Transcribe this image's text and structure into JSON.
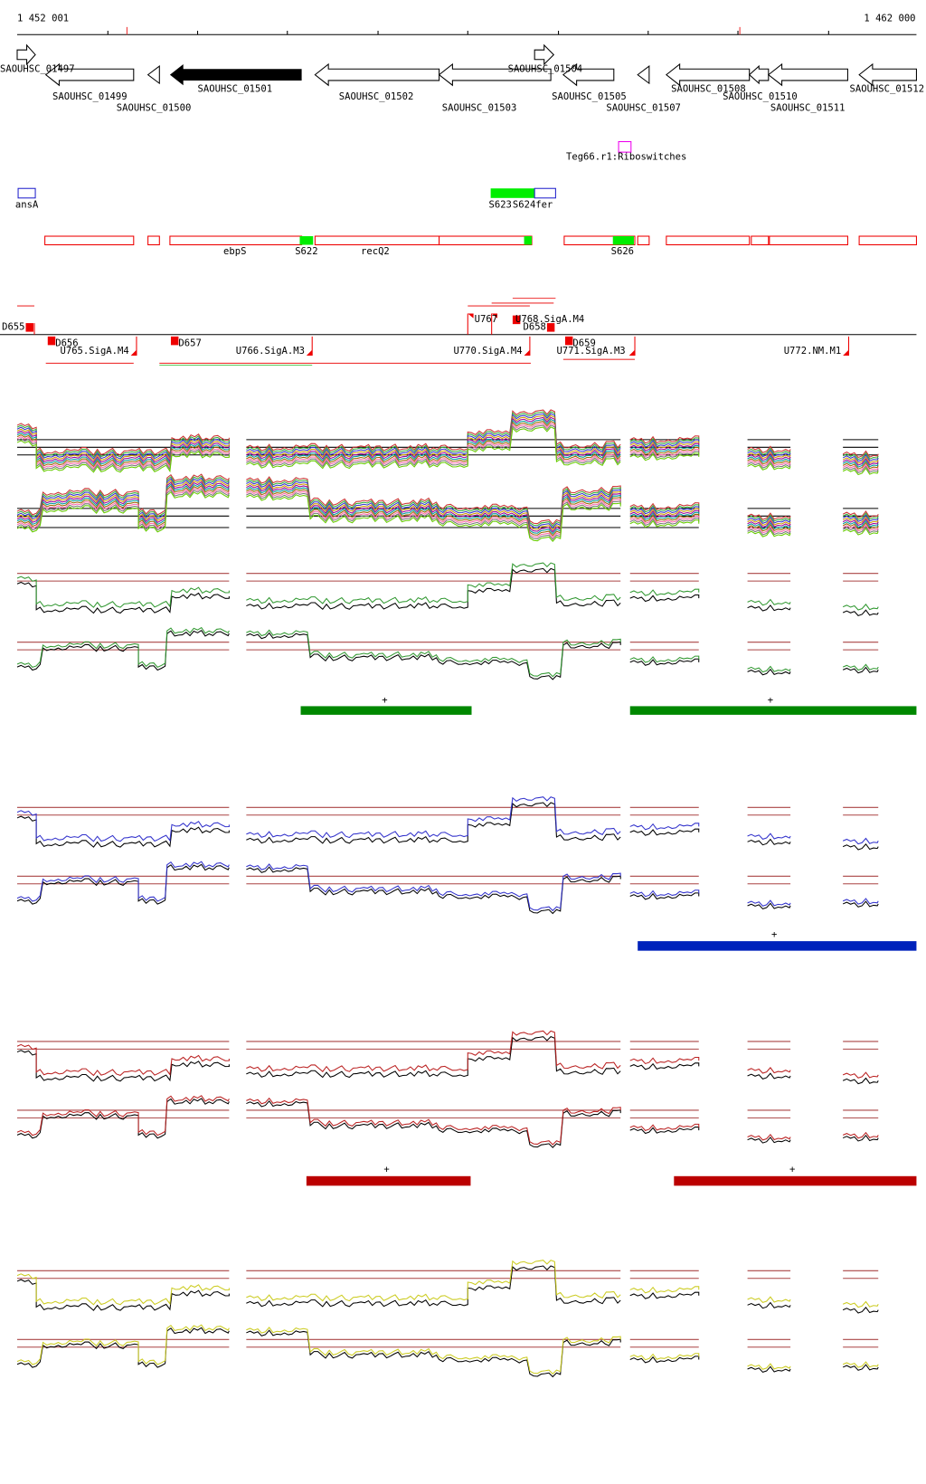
{
  "header": {
    "start": "1 452 001",
    "end": "1 462 000"
  },
  "genes": [
    {
      "label": "SAOUHSC_01497"
    },
    {
      "label": "SAOUHSC_01499"
    },
    {
      "label": "SAOUHSC_01500"
    },
    {
      "label": "SAOUHSC_01501"
    },
    {
      "label": "SAOUHSC_01502"
    },
    {
      "label": "SAOUHSC_01503"
    },
    {
      "label": "SAOUHSC_01504"
    },
    {
      "label": "SAOUHSC_01505"
    },
    {
      "label": "SAOUHSC_01507"
    },
    {
      "label": "SAOUHSC_01508"
    },
    {
      "label": "SAOUHSC_01510"
    },
    {
      "label": "SAOUHSC_01511"
    },
    {
      "label": "SAOUHSC_01512"
    }
  ],
  "riboswitch": {
    "label": "Teg66.r1:Riboswitches"
  },
  "features": [
    {
      "label": "ansA"
    },
    {
      "label": "S623"
    },
    {
      "label": "S624"
    },
    {
      "label": "fer"
    },
    {
      "label": "ebpS"
    },
    {
      "label": "S622"
    },
    {
      "label": "recQ2"
    },
    {
      "label": "S626"
    }
  ],
  "promoters": [
    {
      "label": "D655"
    },
    {
      "label": "D656"
    },
    {
      "label": "U765.SigA.M4"
    },
    {
      "label": "D657"
    },
    {
      "label": "U766.SigA.M3"
    },
    {
      "label": "U767"
    },
    {
      "label": "U768.SigA.M4"
    },
    {
      "label": "D658"
    },
    {
      "label": "U770.SigA.M4"
    },
    {
      "label": "D659"
    },
    {
      "label": "U771.SigA.M3"
    },
    {
      "label": "U772.NM.M1"
    }
  ],
  "strand_marks": [
    "+",
    "+",
    "+",
    "+",
    "+"
  ]
}
